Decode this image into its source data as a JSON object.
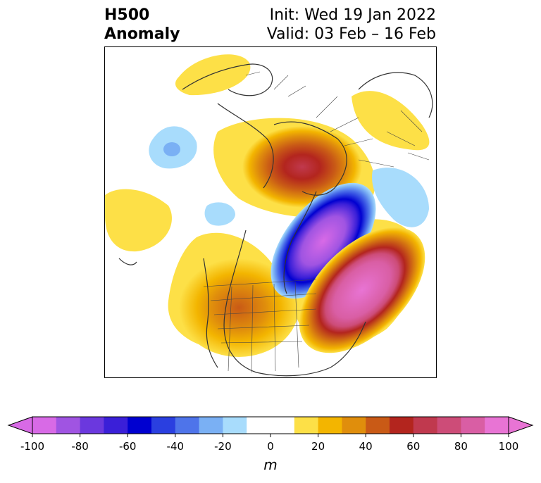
{
  "header": {
    "title_line1": "H500",
    "title_line2": "Anomaly",
    "init_text": "Init: Wed 19 Jan 2022",
    "valid_text": "Valid: 03 Feb – 16 Feb"
  },
  "colorbar": {
    "unit": "m",
    "min": -100,
    "max": 100,
    "step": 10,
    "extend": "both",
    "tick_labels": [
      "-100",
      "-80",
      "-60",
      "-40",
      "-20",
      "0",
      "20",
      "40",
      "60",
      "80",
      "100"
    ],
    "colors": [
      "#d86ae6",
      "#a054e2",
      "#6b38de",
      "#3a1fd8",
      "#0000d0",
      "#2a3fe0",
      "#4e74ea",
      "#7ab0f4",
      "#a8dcfc",
      "#ffffff",
      "#fff9f9",
      "#fde047",
      "#f3b500",
      "#e08e0c",
      "#c95a16",
      "#b3251e",
      "#c0394e",
      "#cd4c78",
      "#d95ea4",
      "#e874d4"
    ],
    "under_color": "#d86ae6",
    "over_color": "#e874d4"
  },
  "map": {
    "projection": "polar-stereographic",
    "features": [
      "coastlines",
      "country-borders",
      "state-borders"
    ]
  }
}
